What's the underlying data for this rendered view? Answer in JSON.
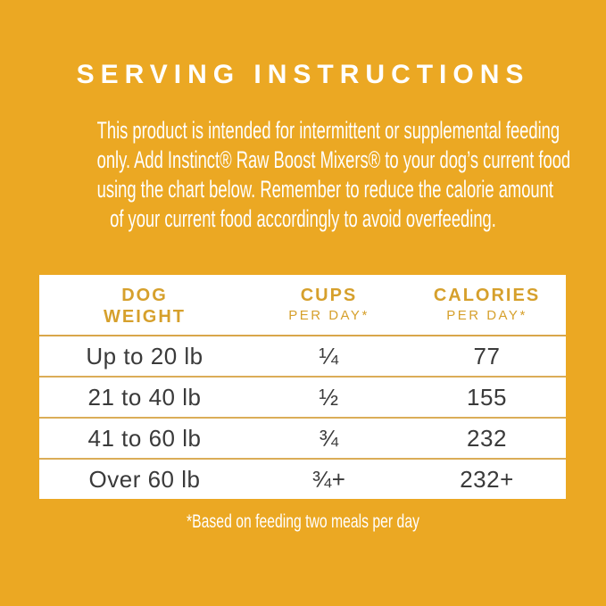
{
  "colors": {
    "background_gold": "#EBA823",
    "table_background": "#FFFFFF",
    "header_text_gold": "#D6A02C",
    "row_text": "#3A3A3A",
    "separator_gold": "#DBAD58",
    "text_white": "#FFFFFF"
  },
  "title": "SERVING INSTRUCTIONS",
  "intro": {
    "lines": [
      "This product is intended for intermittent or supplemental feeding",
      "only. Add Instinct® Raw Boost Mixers® to your dog’s current food",
      "using the chart below. Remember to reduce the calorie amount",
      "of your current food accordingly to avoid overfeeding."
    ]
  },
  "table": {
    "headers": [
      {
        "top": "DOG",
        "sub": "WEIGHT"
      },
      {
        "top": "CUPS",
        "sub": "PER DAY*"
      },
      {
        "top": "CALORIES",
        "sub": "PER DAY*"
      }
    ],
    "rows": [
      {
        "weight": "Up to 20 lb",
        "cups": "¼",
        "calories": "77"
      },
      {
        "weight": "21 to 40 lb",
        "cups": "½",
        "calories": "155"
      },
      {
        "weight": "41 to 60 lb",
        "cups": "¾",
        "calories": "232"
      },
      {
        "weight": "Over 60 lb",
        "cups": "¾+",
        "calories": "232+"
      }
    ]
  },
  "footnote": "*Based on feeding two meals per day",
  "chart_data": {
    "type": "table",
    "columns": [
      "DOG WEIGHT",
      "CUPS PER DAY*",
      "CALORIES PER DAY*"
    ],
    "rows": [
      [
        "Up to 20 lb",
        "¼",
        "77"
      ],
      [
        "21 to 40 lb",
        "½",
        "155"
      ],
      [
        "41 to 60 lb",
        "¾",
        "232"
      ],
      [
        "Over 60 lb",
        "¾+",
        "232+"
      ]
    ],
    "footnote": "*Based on feeding two meals per day"
  }
}
